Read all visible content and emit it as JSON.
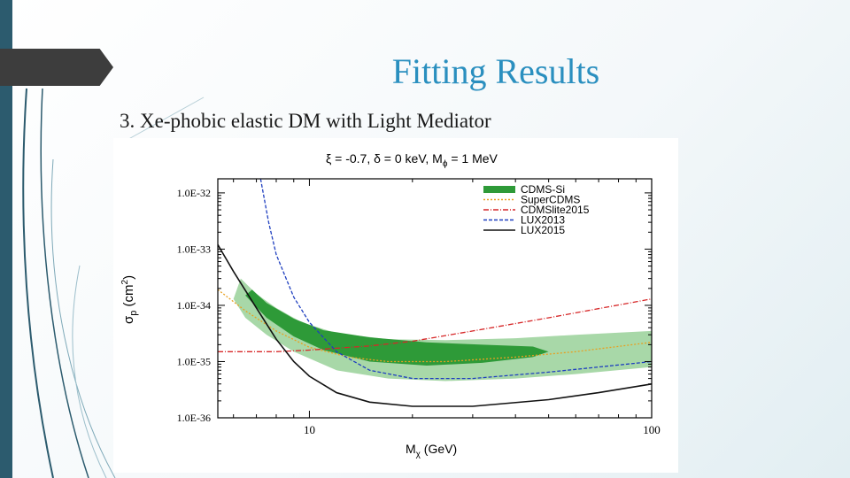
{
  "slide": {
    "title": "Fitting Results",
    "subtitle": "3.   Xe-phobic elastic DM with Light Mediator"
  },
  "chart_data": {
    "type": "line",
    "title": "ξ = -0.7, δ = 0 keV, M",
    "title_subscript": "ϕ",
    "title_tail": " = 1 MeV",
    "xlabel": "M",
    "xlabel_subscript": "χ",
    "xlabel_tail": " (GeV)",
    "ylabel": "σ",
    "ylabel_subscript": "p",
    "ylabel_tail": " (cm",
    "ylabel_sup": "2",
    "ylabel_close": ")",
    "x_scale": "log",
    "y_scale": "log",
    "xlim": [
      5.4,
      100
    ],
    "ylim": [
      1e-36,
      1.78e-32
    ],
    "x_ticks": [
      {
        "value": 10,
        "label": "10"
      },
      {
        "value": 100,
        "label": "100"
      }
    ],
    "y_ticks": [
      {
        "value": 1e-32,
        "label": "1.0E-32"
      },
      {
        "value": 1e-33,
        "label": "1.0E-33"
      },
      {
        "value": 1e-34,
        "label": "1.0E-34"
      },
      {
        "value": 1e-35,
        "label": "1.0E-35"
      },
      {
        "value": 1e-36,
        "label": "1.0E-36"
      }
    ],
    "legend": {
      "position": "top-right",
      "entries": [
        {
          "label": "CDMS-Si",
          "color": "#2e9a38",
          "style": "band"
        },
        {
          "label": "SuperCDMS",
          "color": "#e8a020",
          "style": "dotted"
        },
        {
          "label": "CDMSlite2015",
          "color": "#d62728",
          "style": "dashdot"
        },
        {
          "label": "LUX2013",
          "color": "#1f3fbf",
          "style": "dashed"
        },
        {
          "label": "LUX2015",
          "color": "#111111",
          "style": "solid"
        }
      ]
    },
    "bands": [
      {
        "name": "CDMS-Si 90%",
        "color": "#a8d8a8",
        "x": [
          6.0,
          6.5,
          7.5,
          9.0,
          12,
          17,
          25,
          40,
          60,
          100,
          100,
          60,
          40,
          25,
          17,
          12,
          9.5,
          8.0,
          7.0,
          6.3,
          6.0
        ],
        "y": [
          1.3e-34,
          6e-35,
          3e-35,
          1.5e-35,
          7e-36,
          5e-36,
          4.5e-36,
          5e-36,
          6e-36,
          8e-36,
          3.5e-35,
          3e-35,
          2.6e-35,
          2.4e-35,
          2.5e-35,
          3.2e-35,
          5e-35,
          9e-35,
          1.6e-34,
          3e-34,
          1.3e-34
        ]
      },
      {
        "name": "CDMS-Si 68%",
        "color": "#2e9a38",
        "x": [
          6.5,
          7.5,
          9.0,
          11,
          15,
          22,
          32,
          45,
          50,
          45,
          32,
          22,
          15,
          11,
          9.0,
          7.5,
          6.8,
          6.5
        ],
        "y": [
          1.5e-34,
          6e-35,
          2.8e-35,
          1.6e-35,
          1e-35,
          8.5e-36,
          9.5e-36,
          1.2e-35,
          1.5e-35,
          1.85e-35,
          2e-35,
          2.2e-35,
          2.7e-35,
          3.6e-35,
          5.8e-35,
          1.1e-34,
          1.9e-34,
          1.5e-34
        ]
      }
    ],
    "series": [
      {
        "name": "SuperCDMS",
        "color": "#e8a020",
        "dash": "2,2",
        "x": [
          5.4,
          6.5,
          8,
          10,
          13,
          17,
          25,
          40,
          60,
          100
        ],
        "y": [
          1.9e-34,
          8e-35,
          3.5e-35,
          1.8e-35,
          1.2e-35,
          1e-35,
          1e-35,
          1.2e-35,
          1.5e-35,
          2.2e-35
        ]
      },
      {
        "name": "CDMSlite2015",
        "color": "#d62728",
        "dash": "6,2,1,2",
        "x": [
          5.4,
          8,
          10,
          15,
          20,
          30,
          50,
          100
        ],
        "y": [
          1.5e-35,
          1.5e-35,
          1.6e-35,
          1.9e-35,
          2.3e-35,
          3.5e-35,
          6e-35,
          1.3e-34
        ]
      },
      {
        "name": "LUX2013",
        "color": "#1f3fbf",
        "dash": "4,2",
        "x": [
          7.2,
          7.6,
          8,
          9,
          10,
          12,
          15,
          20,
          30,
          50,
          100
        ],
        "y": [
          1.78e-32,
          3e-33,
          8e-34,
          1.4e-34,
          5e-35,
          1.5e-35,
          7e-36,
          5e-36,
          5e-36,
          6.5e-36,
          1e-35
        ]
      },
      {
        "name": "LUX2015",
        "color": "#111111",
        "dash": "",
        "x": [
          5.4,
          6,
          7,
          8,
          9,
          10,
          12,
          15,
          20,
          30,
          50,
          70,
          100
        ],
        "y": [
          1.2e-33,
          4e-34,
          9e-35,
          2.5e-35,
          1e-35,
          5.5e-36,
          2.8e-36,
          1.9e-36,
          1.6e-36,
          1.6e-36,
          2.1e-36,
          2.8e-36,
          4e-36
        ]
      }
    ]
  }
}
